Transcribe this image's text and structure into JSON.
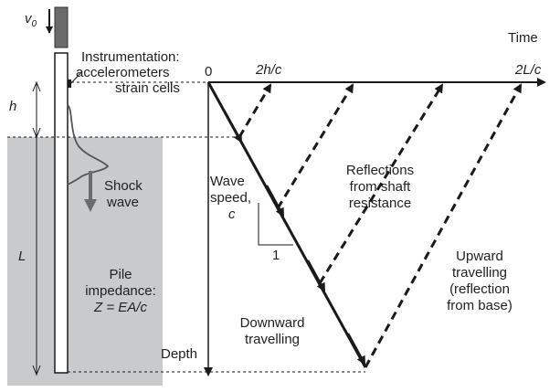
{
  "labels": {
    "v0_symbol": "v",
    "v0_sub": "0",
    "instrumentation": "Instrumentation:",
    "accelerometers": "accelerometers",
    "strain_cells": "strain cells",
    "h": "h",
    "L": "L",
    "shock_wave_1": "Shock",
    "shock_wave_2": "wave",
    "pile_impedance_1": "Pile",
    "pile_impedance_2": "impedance:",
    "pile_impedance_eq": "Z = EA/c",
    "origin": "0",
    "two_h_over_c": "2h/c",
    "two_L_over_c": "2L/c",
    "time": "Time",
    "depth": "Depth",
    "wave_speed_1": "Wave",
    "wave_speed_2": "speed,",
    "wave_speed_c": "c",
    "slope_one": "1",
    "reflections_1": "Reflections",
    "reflections_2": "from shaft",
    "reflections_3": "resistance",
    "downward_1": "Downward",
    "downward_2": "travelling",
    "upward_1": "Upward",
    "upward_2": "travelling",
    "upward_3": "(reflection",
    "upward_4": "from base)"
  },
  "colors": {
    "soil": "#c8cacc",
    "hammer": "#6b6b6b",
    "line": "#1a1a1a",
    "shock_arrow": "#6b6b6b"
  }
}
